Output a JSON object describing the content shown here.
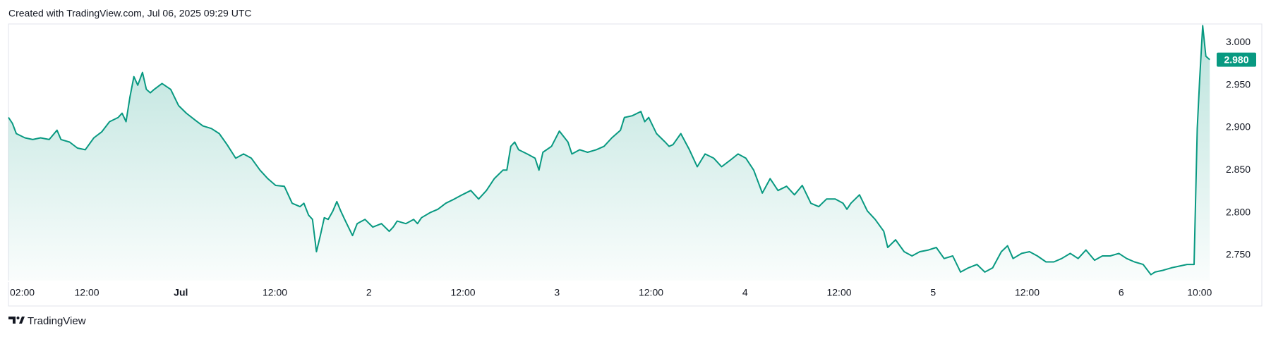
{
  "header": "Created with TradingView.com, Jul 06, 2025 09:29 UTC",
  "footer": "TradingView",
  "chart_data": {
    "type": "area",
    "x": [
      2.0,
      2.5,
      3.0,
      4.1,
      5.1,
      6.1,
      7.2,
      8.2,
      8.7,
      9.8,
      10.8,
      11.8,
      12.9,
      13.9,
      14.9,
      16.0,
      16.5,
      17.0,
      17.5,
      18.0,
      18.5,
      19.1,
      19.6,
      20.1,
      20.6,
      21.6,
      22.7,
      23.7,
      24.7,
      25.8,
      26.8,
      27.9,
      28.9,
      29.9,
      31.0,
      32.0,
      33.0,
      34.1,
      35.1,
      36.1,
      37.2,
      38.2,
      39.2,
      39.7,
      40.3,
      40.8,
      41.3,
      41.8,
      42.3,
      42.8,
      43.4,
      43.9,
      44.4,
      44.9,
      45.9,
      46.5,
      47.5,
      48.5,
      49.6,
      50.6,
      51.1,
      51.6,
      52.7,
      53.7,
      54.2,
      54.7,
      55.8,
      56.8,
      57.8,
      58.9,
      59.9,
      61.0,
      62.0,
      63.0,
      64.0,
      65.1,
      65.6,
      66.1,
      66.6,
      67.1,
      68.2,
      69.2,
      69.7,
      70.2,
      71.3,
      72.3,
      73.4,
      73.9,
      74.9,
      75.9,
      77.0,
      78.0,
      79.0,
      80.1,
      80.6,
      81.6,
      82.7,
      83.2,
      83.7,
      84.7,
      85.8,
      86.3,
      86.8,
      87.8,
      88.9,
      89.9,
      90.9,
      92.0,
      93.0,
      94.0,
      95.1,
      96.1,
      97.1,
      98.2,
      99.2,
      100.2,
      101.3,
      102.3,
      103.3,
      104.4,
      105.4,
      106.4,
      107.5,
      108.5,
      109.0,
      109.5,
      110.6,
      111.6,
      112.6,
      113.7,
      114.2,
      115.2,
      116.3,
      117.3,
      118.3,
      119.4,
      120.4,
      121.4,
      122.5,
      123.5,
      124.5,
      125.6,
      126.6,
      127.6,
      128.7,
      129.5,
      130.2,
      131.3,
      132.3,
      133.3,
      134.4,
      135.4,
      136.4,
      137.5,
      138.5,
      139.5,
      140.6,
      141.6,
      142.6,
      143.7,
      144.7,
      145.7,
      146.8,
      147.8,
      148.3,
      149.3,
      150.4,
      151.4,
      152.4,
      153.3,
      153.7,
      154.0,
      154.4,
      154.8,
      155.3
    ],
    "series": [
      {
        "color": "#089981",
        "values": [
          2.912,
          2.905,
          2.893,
          2.888,
          2.886,
          2.888,
          2.886,
          2.897,
          2.886,
          2.883,
          2.876,
          2.874,
          2.888,
          2.895,
          2.907,
          2.912,
          2.917,
          2.907,
          2.936,
          2.96,
          2.95,
          2.965,
          2.945,
          2.941,
          2.945,
          2.952,
          2.945,
          2.926,
          2.917,
          2.909,
          2.902,
          2.899,
          2.893,
          2.88,
          2.864,
          2.869,
          2.864,
          2.85,
          2.84,
          2.832,
          2.831,
          2.811,
          2.807,
          2.811,
          2.797,
          2.792,
          2.754,
          2.773,
          2.794,
          2.792,
          2.802,
          2.813,
          2.802,
          2.792,
          2.773,
          2.787,
          2.792,
          2.783,
          2.787,
          2.778,
          2.783,
          2.79,
          2.787,
          2.792,
          2.787,
          2.794,
          2.8,
          2.804,
          2.811,
          2.816,
          2.821,
          2.826,
          2.816,
          2.826,
          2.84,
          2.85,
          2.85,
          2.878,
          2.883,
          2.874,
          2.869,
          2.864,
          2.85,
          2.871,
          2.878,
          2.896,
          2.883,
          2.869,
          2.874,
          2.871,
          2.874,
          2.878,
          2.888,
          2.897,
          2.912,
          2.914,
          2.919,
          2.907,
          2.912,
          2.893,
          2.883,
          2.878,
          2.88,
          2.893,
          2.874,
          2.854,
          2.869,
          2.864,
          2.854,
          2.861,
          2.869,
          2.864,
          2.85,
          2.823,
          2.84,
          2.826,
          2.831,
          2.821,
          2.832,
          2.811,
          2.807,
          2.816,
          2.816,
          2.811,
          2.804,
          2.811,
          2.821,
          2.802,
          2.792,
          2.778,
          2.759,
          2.768,
          2.754,
          2.749,
          2.754,
          2.756,
          2.759,
          2.746,
          2.749,
          2.73,
          2.735,
          2.739,
          2.73,
          2.735,
          2.754,
          2.761,
          2.746,
          2.752,
          2.754,
          2.749,
          2.742,
          2.742,
          2.746,
          2.752,
          2.746,
          2.756,
          2.744,
          2.749,
          2.749,
          2.752,
          2.746,
          2.742,
          2.739,
          2.727,
          2.73,
          2.732,
          2.735,
          2.737,
          2.739,
          2.739,
          2.899,
          2.955,
          3.02,
          2.984,
          2.98
        ]
      }
    ],
    "xlim": [
      2,
      156
    ],
    "ylim": [
      2.72,
      3.022
    ],
    "xticks": [
      {
        "value": 2,
        "label": "02:00"
      },
      {
        "value": 12,
        "label": "12:00"
      },
      {
        "value": 24,
        "label": "Jul"
      },
      {
        "value": 36,
        "label": "12:00"
      },
      {
        "value": 48,
        "label": "2"
      },
      {
        "value": 60,
        "label": "12:00"
      },
      {
        "value": 72,
        "label": "3"
      },
      {
        "value": 84,
        "label": "12:00"
      },
      {
        "value": 96,
        "label": "4"
      },
      {
        "value": 108,
        "label": "12:00"
      },
      {
        "value": 120,
        "label": "5"
      },
      {
        "value": 132,
        "label": "12:00"
      },
      {
        "value": 144,
        "label": "6"
      },
      {
        "value": 154,
        "label": "10:00"
      }
    ],
    "yticks": [
      {
        "value": 2.75,
        "label": "2.750"
      },
      {
        "value": 2.8,
        "label": "2.800"
      },
      {
        "value": 2.85,
        "label": "2.850"
      },
      {
        "value": 2.9,
        "label": "2.900"
      },
      {
        "value": 2.95,
        "label": "2.950"
      },
      {
        "value": 3.0,
        "label": "3.000"
      }
    ],
    "last_price": {
      "value": 2.98,
      "label": "2.980"
    },
    "grid": false
  }
}
